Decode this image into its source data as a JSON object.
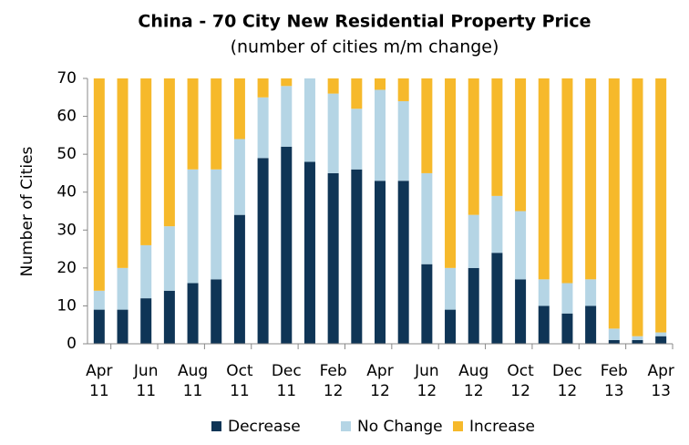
{
  "chart_data": {
    "type": "stacked-bar",
    "title": "China - 70 City New Residential Property Price",
    "subtitle": "(number of cities m/m change)",
    "y_label": "Number of Cities",
    "categories": [
      "Apr 11",
      null,
      "Jun 11",
      null,
      "Aug 11",
      null,
      "Oct 11",
      null,
      "Dec 11",
      null,
      "Feb 12",
      null,
      "Apr 12",
      null,
      "Jun 12",
      null,
      "Aug 12",
      null,
      "Oct 12",
      null,
      "Dec 12",
      null,
      "Feb 13",
      null,
      "Apr 13"
    ],
    "series": [
      {
        "name": "Decrease",
        "color": "#0f3556",
        "values": [
          9,
          9,
          12,
          14,
          16,
          17,
          34,
          49,
          52,
          48,
          45,
          46,
          43,
          43,
          21,
          9,
          20,
          24,
          17,
          10,
          8,
          10,
          1,
          1,
          2
        ]
      },
      {
        "name": "No Change",
        "color": "#b5d5e5",
        "values": [
          5,
          11,
          14,
          17,
          30,
          29,
          20,
          16,
          16,
          22,
          21,
          16,
          24,
          21,
          24,
          11,
          14,
          15,
          18,
          7,
          8,
          7,
          3,
          1,
          1
        ]
      },
      {
        "name": "Increase",
        "color": "#f6b92b",
        "values": [
          56,
          50,
          44,
          39,
          24,
          24,
          16,
          5,
          2,
          0,
          4,
          8,
          3,
          6,
          25,
          50,
          36,
          31,
          35,
          53,
          54,
          53,
          66,
          68,
          67
        ]
      }
    ],
    "ylim": [
      0,
      70
    ],
    "yticks": [
      0,
      10,
      20,
      30,
      40,
      50,
      60,
      70
    ],
    "legend": "bottom",
    "grid": false
  }
}
